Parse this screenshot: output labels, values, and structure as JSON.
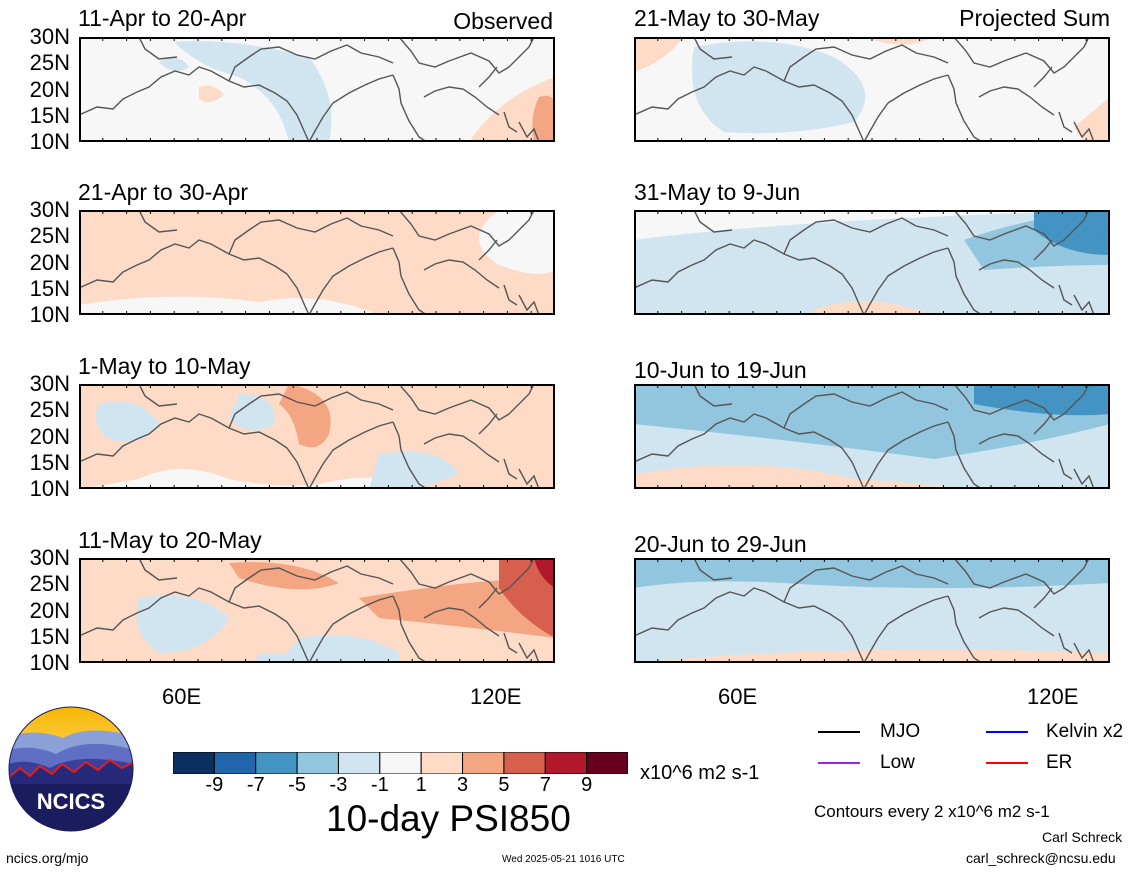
{
  "panels": [
    {
      "title": "11-Apr to 20-Apr",
      "corner": "Observed",
      "fill": "obs1"
    },
    {
      "title": "21-Apr to 30-Apr",
      "corner": "",
      "fill": "obs2"
    },
    {
      "title": "1-May to 10-May",
      "corner": "",
      "fill": "obs3"
    },
    {
      "title": "11-May to 20-May",
      "corner": "",
      "fill": "obs4"
    },
    {
      "title": "21-May to 30-May",
      "corner": "Projected Sum",
      "fill": "prj1"
    },
    {
      "title": "31-May to 9-Jun",
      "corner": "",
      "fill": "prj2"
    },
    {
      "title": "10-Jun to 19-Jun",
      "corner": "",
      "fill": "prj3"
    },
    {
      "title": "20-Jun to 29-Jun",
      "corner": "",
      "fill": "prj4"
    }
  ],
  "lat_labels": [
    "30N",
    "25N",
    "20N",
    "15N",
    "10N"
  ],
  "lon_labels": [
    "60E",
    "120E"
  ],
  "colorbar": {
    "colors": [
      "#0b2f5e",
      "#2166ac",
      "#4393c3",
      "#92c5de",
      "#d1e5f0",
      "#f7f7f7",
      "#fddbc7",
      "#f4a582",
      "#d6604d",
      "#b2182b",
      "#67001f"
    ],
    "ticks": [
      "-9",
      "-7",
      "-5",
      "-3",
      "-1",
      "1",
      "3",
      "5",
      "7",
      "9"
    ],
    "units": "x10^6 m2 s-1"
  },
  "main_title": "10-day PSI850",
  "legend": [
    {
      "label": "MJO",
      "color": "#000000"
    },
    {
      "label": "Kelvin x2",
      "color": "#0000ff"
    },
    {
      "label": "Low",
      "color": "#a020f0"
    },
    {
      "label": "ER",
      "color": "#ff0000"
    }
  ],
  "contours_note": "Contours every 2 x10^6 m2 s-1",
  "author": "Carl Schreck",
  "email": "carl_schreck@ncsu.edu",
  "site": "ncics.org/mjo",
  "timestamp": "Wed 2025-05-21 1016 UTC",
  "logo_text": "NCICS"
}
